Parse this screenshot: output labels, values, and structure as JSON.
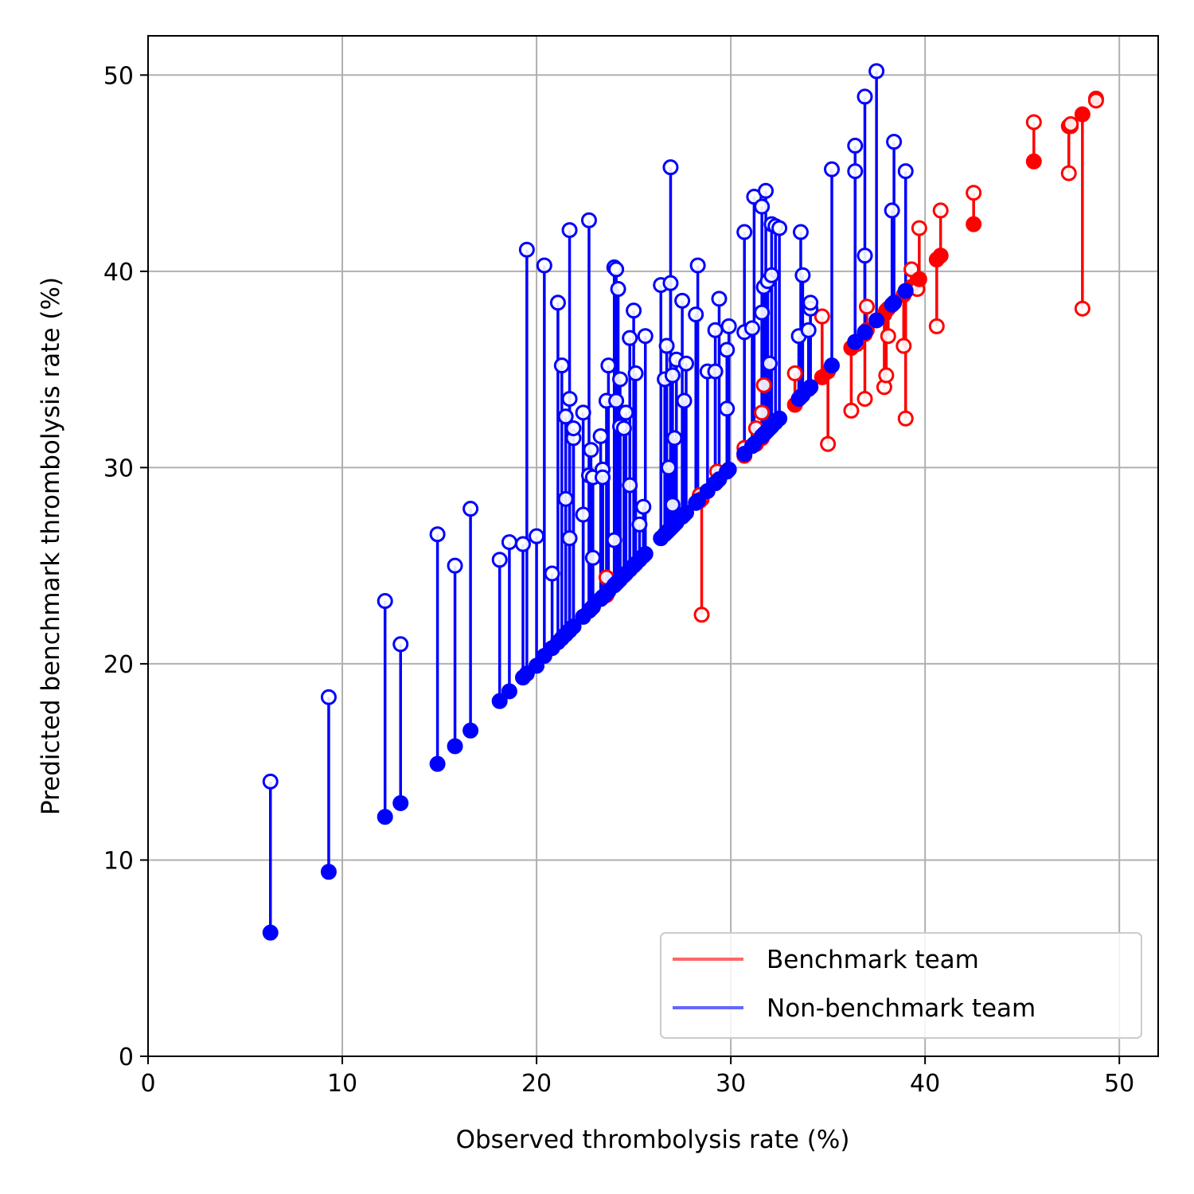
{
  "chart_data": {
    "type": "scatter",
    "xlabel": "Observed thrombolysis rate (%)",
    "ylabel": "Predicted benchmark thrombolysis rate (%)",
    "xlim": [
      0,
      52
    ],
    "ylim": [
      0,
      52
    ],
    "xticks": [
      0,
      10,
      20,
      30,
      40,
      50
    ],
    "yticks": [
      0,
      10,
      20,
      30,
      40,
      50
    ],
    "grid": true,
    "legend_position": "bottom-right",
    "series": [
      {
        "name": "Benchmark team",
        "color": "#ff0000",
        "legend_color": "#ff6666",
        "points": [
          [
            23.6,
            23.5,
            24.4
          ],
          [
            28.4,
            28.3,
            28.6
          ],
          [
            28.5,
            28.4,
            22.5
          ],
          [
            29.3,
            29.3,
            29.8
          ],
          [
            30.7,
            30.6,
            31.0
          ],
          [
            31.3,
            31.2,
            32.0
          ],
          [
            31.6,
            31.5,
            32.8
          ],
          [
            31.7,
            31.7,
            34.2
          ],
          [
            33.3,
            33.2,
            34.8
          ],
          [
            34.7,
            34.6,
            37.7
          ],
          [
            35.0,
            34.9,
            31.2
          ],
          [
            36.2,
            36.1,
            32.9
          ],
          [
            36.5,
            36.4,
            36.3
          ],
          [
            36.9,
            36.8,
            33.5
          ],
          [
            37.0,
            37.0,
            38.2
          ],
          [
            37.9,
            37.8,
            34.1
          ],
          [
            38.0,
            38.0,
            34.7
          ],
          [
            38.1,
            38.1,
            36.7
          ],
          [
            38.9,
            38.8,
            36.2
          ],
          [
            39.0,
            39.0,
            32.5
          ],
          [
            39.3,
            39.2,
            40.1
          ],
          [
            39.6,
            39.5,
            39.1
          ],
          [
            39.7,
            39.6,
            42.2
          ],
          [
            40.6,
            40.6,
            37.2
          ],
          [
            40.8,
            40.8,
            43.1
          ],
          [
            42.5,
            42.4,
            44.0
          ],
          [
            45.6,
            45.6,
            47.6
          ],
          [
            47.4,
            47.4,
            45.0
          ],
          [
            47.5,
            47.4,
            47.5
          ],
          [
            48.1,
            48.0,
            38.1
          ],
          [
            48.8,
            48.8,
            48.7
          ]
        ]
      },
      {
        "name": "Non-benchmark team",
        "color": "#0000ff",
        "legend_color": "#6666ff",
        "points": [
          [
            6.3,
            6.3,
            14.0
          ],
          [
            9.3,
            9.4,
            18.3
          ],
          [
            12.2,
            12.2,
            23.2
          ],
          [
            13.0,
            12.9,
            21.0
          ],
          [
            14.9,
            14.9,
            26.6
          ],
          [
            15.8,
            15.8,
            25.0
          ],
          [
            16.6,
            16.6,
            27.9
          ],
          [
            18.1,
            18.1,
            25.3
          ],
          [
            18.6,
            18.6,
            26.2
          ],
          [
            19.3,
            19.3,
            26.1
          ],
          [
            19.5,
            19.5,
            41.1
          ],
          [
            20.0,
            19.9,
            26.5
          ],
          [
            20.4,
            20.4,
            40.3
          ],
          [
            20.8,
            20.8,
            24.6
          ],
          [
            21.1,
            21.1,
            38.4
          ],
          [
            21.3,
            21.3,
            35.2
          ],
          [
            21.5,
            21.5,
            28.4
          ],
          [
            21.5,
            21.5,
            32.6
          ],
          [
            21.7,
            21.7,
            26.4
          ],
          [
            21.7,
            21.7,
            42.1
          ],
          [
            21.7,
            21.7,
            33.5
          ],
          [
            21.9,
            21.9,
            31.5
          ],
          [
            21.9,
            21.9,
            32.0
          ],
          [
            22.4,
            22.4,
            27.6
          ],
          [
            22.4,
            22.4,
            32.8
          ],
          [
            22.7,
            22.7,
            29.6
          ],
          [
            22.7,
            22.7,
            42.6
          ],
          [
            22.8,
            22.8,
            30.9
          ],
          [
            22.9,
            22.9,
            25.4
          ],
          [
            22.9,
            22.9,
            29.5
          ],
          [
            23.3,
            23.3,
            31.6
          ],
          [
            23.4,
            23.4,
            29.9
          ],
          [
            23.4,
            23.4,
            29.5
          ],
          [
            23.6,
            23.6,
            33.4
          ],
          [
            23.7,
            23.7,
            35.2
          ],
          [
            24.0,
            24.0,
            40.2
          ],
          [
            24.0,
            24.0,
            26.3
          ],
          [
            24.1,
            24.1,
            40.1
          ],
          [
            24.1,
            24.1,
            33.4
          ],
          [
            24.2,
            24.2,
            39.1
          ],
          [
            24.3,
            24.3,
            32.1
          ],
          [
            24.3,
            24.3,
            34.5
          ],
          [
            24.5,
            24.5,
            32.0
          ],
          [
            24.6,
            24.6,
            32.8
          ],
          [
            24.8,
            24.8,
            29.1
          ],
          [
            24.8,
            24.8,
            36.6
          ],
          [
            25.0,
            25.0,
            38.0
          ],
          [
            25.1,
            25.1,
            34.8
          ],
          [
            25.3,
            25.3,
            27.1
          ],
          [
            25.5,
            25.5,
            28.0
          ],
          [
            25.6,
            25.6,
            36.7
          ],
          [
            26.4,
            26.4,
            39.3
          ],
          [
            26.6,
            26.6,
            34.5
          ],
          [
            26.7,
            26.7,
            36.2
          ],
          [
            26.8,
            26.8,
            30.0
          ],
          [
            26.9,
            26.9,
            45.3
          ],
          [
            26.9,
            26.9,
            39.4
          ],
          [
            27.0,
            27.0,
            34.7
          ],
          [
            27.0,
            27.0,
            28.1
          ],
          [
            27.1,
            27.1,
            31.5
          ],
          [
            27.2,
            27.2,
            35.5
          ],
          [
            27.5,
            27.5,
            38.5
          ],
          [
            27.6,
            27.6,
            33.4
          ],
          [
            27.7,
            27.7,
            35.3
          ],
          [
            28.2,
            28.2,
            37.8
          ],
          [
            28.3,
            28.3,
            40.3
          ],
          [
            28.8,
            28.8,
            34.9
          ],
          [
            29.2,
            29.2,
            34.9
          ],
          [
            29.2,
            29.2,
            37.0
          ],
          [
            29.4,
            29.4,
            38.6
          ],
          [
            29.8,
            29.8,
            33.0
          ],
          [
            29.8,
            29.8,
            36.0
          ],
          [
            29.9,
            29.9,
            37.2
          ],
          [
            30.7,
            30.7,
            36.9
          ],
          [
            30.7,
            30.7,
            42.0
          ],
          [
            31.1,
            31.1,
            37.1
          ],
          [
            31.2,
            31.2,
            43.8
          ],
          [
            31.6,
            31.6,
            43.3
          ],
          [
            31.6,
            31.6,
            37.9
          ],
          [
            31.7,
            31.7,
            39.2
          ],
          [
            31.8,
            31.8,
            44.1
          ],
          [
            31.9,
            31.9,
            39.5
          ],
          [
            32.0,
            32.0,
            35.3
          ],
          [
            32.1,
            32.1,
            39.8
          ],
          [
            32.1,
            32.1,
            42.4
          ],
          [
            32.3,
            32.3,
            42.3
          ],
          [
            32.5,
            32.5,
            42.2
          ],
          [
            33.5,
            33.5,
            36.7
          ],
          [
            33.6,
            33.6,
            42.0
          ],
          [
            33.7,
            33.7,
            39.8
          ],
          [
            34.0,
            34.0,
            37.0
          ],
          [
            34.1,
            34.1,
            38.1
          ],
          [
            34.1,
            34.1,
            38.4
          ],
          [
            35.2,
            35.2,
            45.2
          ],
          [
            36.4,
            36.4,
            46.4
          ],
          [
            36.4,
            36.4,
            45.1
          ],
          [
            36.9,
            36.9,
            48.9
          ],
          [
            36.9,
            36.9,
            40.8
          ],
          [
            37.5,
            37.5,
            50.2
          ],
          [
            38.3,
            38.3,
            43.1
          ],
          [
            38.4,
            38.4,
            46.6
          ],
          [
            39.0,
            39.0,
            45.1
          ]
        ]
      }
    ]
  }
}
